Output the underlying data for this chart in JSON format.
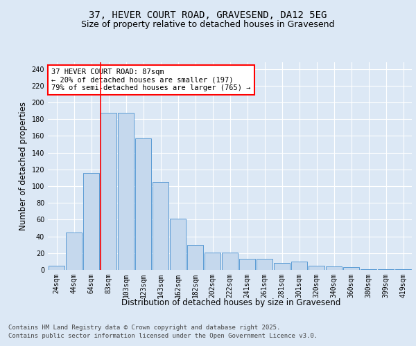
{
  "title_line1": "37, HEVER COURT ROAD, GRAVESEND, DA12 5EG",
  "title_line2": "Size of property relative to detached houses in Gravesend",
  "xlabel": "Distribution of detached houses by size in Gravesend",
  "ylabel": "Number of detached properties",
  "categories": [
    "24sqm",
    "44sqm",
    "64sqm",
    "83sqm",
    "103sqm",
    "123sqm",
    "143sqm",
    "162sqm",
    "182sqm",
    "202sqm",
    "222sqm",
    "241sqm",
    "261sqm",
    "281sqm",
    "301sqm",
    "320sqm",
    "340sqm",
    "360sqm",
    "380sqm",
    "399sqm",
    "419sqm"
  ],
  "values": [
    5,
    45,
    116,
    188,
    188,
    157,
    105,
    61,
    30,
    21,
    21,
    13,
    13,
    8,
    10,
    5,
    4,
    3,
    1,
    1,
    1
  ],
  "bar_color": "#c5d8ed",
  "bar_edge_color": "#5b9bd5",
  "vline_x_index": 3,
  "annotation_text": "37 HEVER COURT ROAD: 87sqm\n← 20% of detached houses are smaller (197)\n79% of semi-detached houses are larger (765) →",
  "annotation_box_color": "white",
  "annotation_box_edge_color": "red",
  "vline_color": "red",
  "ylim": [
    0,
    248
  ],
  "yticks": [
    0,
    20,
    40,
    60,
    80,
    100,
    120,
    140,
    160,
    180,
    200,
    220,
    240
  ],
  "footer_line1": "Contains HM Land Registry data © Crown copyright and database right 2025.",
  "footer_line2": "Contains public sector information licensed under the Open Government Licence v3.0.",
  "bg_color": "#dce8f5",
  "plot_bg_color": "#dce8f5",
  "title_fontsize": 10,
  "subtitle_fontsize": 9,
  "axis_label_fontsize": 8.5,
  "tick_fontsize": 7,
  "footer_fontsize": 6.5,
  "annotation_fontsize": 7.5
}
